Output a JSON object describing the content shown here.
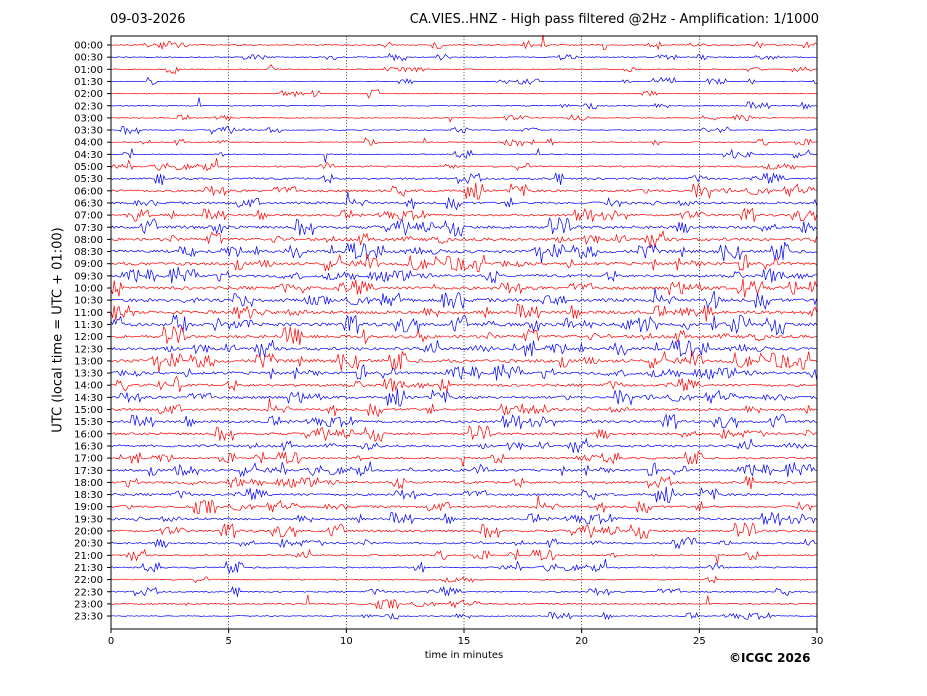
{
  "header": {
    "date": "09-03-2026",
    "title": "CA.VIES..HNZ - High pass filtered @2Hz - Amplification: 1/1000"
  },
  "footer": {
    "copyright": "©ICGC 2026"
  },
  "colors": {
    "red_trace": "#ff0000",
    "blue_trace": "#0000ff",
    "grid": "#000000"
  },
  "chart_data": {
    "type": "line",
    "xlabel": "time in minutes",
    "ylabel": "UTC (local time = UTC + 01:00)",
    "xlim": [
      0,
      30
    ],
    "x_ticks": [
      0,
      5,
      10,
      15,
      20,
      25,
      30
    ],
    "grid": "vertical dotted lines at x ticks",
    "row_labels": [
      "00:00",
      "00:30",
      "01:00",
      "01:30",
      "02:00",
      "02:30",
      "03:00",
      "03:30",
      "04:00",
      "04:30",
      "05:00",
      "05:30",
      "06:00",
      "06:30",
      "07:00",
      "07:30",
      "08:00",
      "08:30",
      "09:00",
      "09:30",
      "10:00",
      "10:30",
      "11:00",
      "11:30",
      "12:00",
      "12:30",
      "13:00",
      "13:30",
      "14:00",
      "14:30",
      "15:00",
      "15:30",
      "16:00",
      "16:30",
      "17:00",
      "17:30",
      "18:00",
      "18:30",
      "19:00",
      "19:30",
      "20:00",
      "20:30",
      "21:00",
      "21:30",
      "22:00",
      "22:30",
      "23:00",
      "23:30"
    ],
    "row_colors": "alternating red (even rows) and blue (odd rows)",
    "activity": [
      0.2,
      0.15,
      0.15,
      0.05,
      0.1,
      0.15,
      0.1,
      0.1,
      0.1,
      0.15,
      0.3,
      0.5,
      0.65,
      0.6,
      0.55,
      0.8,
      0.85,
      0.85,
      0.85,
      0.75,
      0.9,
      0.95,
      0.95,
      0.95,
      0.9,
      0.85,
      0.9,
      0.75,
      0.7,
      0.7,
      0.65,
      0.65,
      0.6,
      0.6,
      0.45,
      0.6,
      0.6,
      0.6,
      0.55,
      0.6,
      0.6,
      0.45,
      0.35,
      0.3,
      0.2,
      0.3,
      0.2,
      0.15
    ]
  }
}
